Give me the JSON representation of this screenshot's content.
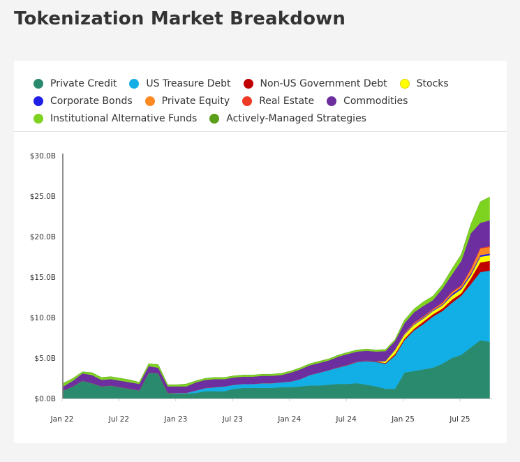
{
  "header": {
    "title": "Tokenization Market Breakdown"
  },
  "chart_data": {
    "type": "area",
    "stacked": true,
    "title": "",
    "xlabel": "",
    "ylabel": "",
    "ylim": [
      0,
      30
    ],
    "y_unit": "$B",
    "y_ticks": [
      "$0.0B",
      "$5.0B",
      "$10.0B",
      "$15.0B",
      "$20.0B",
      "$25.0B",
      "$30.0B"
    ],
    "x_ticks": [
      "Jan 22",
      "Jul 22",
      "Jan 23",
      "Jul 23",
      "Jan 24",
      "Jul 24",
      "Jan 25",
      "Jul 25"
    ],
    "legend_position": "top",
    "grid": false,
    "x": [
      "2022-01",
      "2022-02",
      "2022-03",
      "2022-04",
      "2022-05",
      "2022-06",
      "2022-07",
      "2022-08",
      "2022-09",
      "2022-10",
      "2022-11",
      "2022-12",
      "2023-01",
      "2023-02",
      "2023-03",
      "2023-04",
      "2023-05",
      "2023-06",
      "2023-07",
      "2023-08",
      "2023-09",
      "2023-10",
      "2023-11",
      "2023-12",
      "2024-01",
      "2024-02",
      "2024-03",
      "2024-04",
      "2024-05",
      "2024-06",
      "2024-07",
      "2024-08",
      "2024-09",
      "2024-10",
      "2024-11",
      "2024-12",
      "2025-01",
      "2025-02",
      "2025-03",
      "2025-04",
      "2025-05",
      "2025-06",
      "2025-07",
      "2025-08",
      "2025-09",
      "2025-10"
    ],
    "series": [
      {
        "name": "Private Credit",
        "color": "#2a8a6e",
        "values": [
          1.0,
          1.5,
          2.2,
          1.9,
          1.5,
          1.6,
          1.4,
          1.2,
          1.0,
          3.2,
          3.1,
          0.7,
          0.6,
          0.6,
          0.7,
          0.9,
          0.9,
          0.9,
          1.2,
          1.3,
          1.3,
          1.3,
          1.3,
          1.4,
          1.4,
          1.5,
          1.6,
          1.6,
          1.7,
          1.8,
          1.8,
          1.9,
          1.7,
          1.5,
          1.2,
          1.2,
          3.2,
          3.4,
          3.6,
          3.8,
          4.3,
          5.0,
          5.4,
          6.3,
          7.2,
          7.0
        ]
      },
      {
        "name": "US Treasure Debt",
        "color": "#12aee6",
        "values": [
          0,
          0,
          0,
          0,
          0,
          0,
          0,
          0,
          0,
          0,
          0,
          0,
          0.1,
          0.1,
          0.3,
          0.4,
          0.5,
          0.6,
          0.5,
          0.5,
          0.5,
          0.6,
          0.6,
          0.6,
          0.7,
          0.9,
          1.3,
          1.6,
          1.8,
          2.0,
          2.3,
          2.6,
          2.9,
          3.0,
          3.1,
          4.1,
          4.0,
          5.0,
          5.6,
          6.3,
          6.5,
          6.8,
          7.3,
          7.8,
          8.4,
          8.8
        ]
      },
      {
        "name": "Non-US Government Debt",
        "color": "#c00000",
        "values": [
          0,
          0,
          0,
          0,
          0,
          0,
          0,
          0,
          0,
          0,
          0,
          0,
          0,
          0,
          0,
          0,
          0,
          0,
          0,
          0,
          0,
          0,
          0,
          0,
          0,
          0,
          0,
          0,
          0,
          0.03,
          0.05,
          0.05,
          0.05,
          0.05,
          0.1,
          0.2,
          0.2,
          0.2,
          0.3,
          0.3,
          0.3,
          0.4,
          0.3,
          0.7,
          1.2,
          1.2
        ]
      },
      {
        "name": "Stocks",
        "color": "#ffff00",
        "values": [
          0,
          0,
          0,
          0,
          0,
          0,
          0,
          0,
          0,
          0,
          0,
          0,
          0,
          0,
          0,
          0,
          0,
          0,
          0,
          0,
          0,
          0,
          0,
          0,
          0,
          0,
          0,
          0,
          0,
          0,
          0,
          0,
          0,
          0,
          0.2,
          0.5,
          0.5,
          0.5,
          0.4,
          0.4,
          0.4,
          0.5,
          0.5,
          0.4,
          0.7,
          0.7
        ]
      },
      {
        "name": "Corporate Bonds",
        "color": "#1f1fe6",
        "values": [
          0,
          0,
          0,
          0,
          0,
          0,
          0,
          0,
          0,
          0,
          0,
          0,
          0,
          0,
          0,
          0,
          0,
          0,
          0,
          0,
          0,
          0,
          0,
          0,
          0,
          0,
          0,
          0,
          0,
          0.03,
          0.05,
          0.05,
          0.05,
          0.05,
          0.05,
          0.1,
          0.1,
          0.1,
          0.1,
          0.1,
          0.1,
          0.2,
          0.2,
          0.2,
          0.2,
          0.2
        ]
      },
      {
        "name": "Private Equity",
        "color": "#ff8a24",
        "values": [
          0,
          0,
          0,
          0,
          0,
          0,
          0,
          0,
          0,
          0,
          0,
          0,
          0,
          0,
          0,
          0,
          0,
          0,
          0,
          0,
          0,
          0,
          0,
          0,
          0,
          0,
          0,
          0,
          0,
          0,
          0,
          0,
          0,
          0,
          0,
          0,
          0.05,
          0.1,
          0.1,
          0.1,
          0.2,
          0.2,
          0.2,
          0.5,
          0.8,
          0.8
        ]
      },
      {
        "name": "Real Estate",
        "color": "#ee3a24",
        "values": [
          0,
          0,
          0,
          0,
          0,
          0,
          0,
          0,
          0,
          0,
          0,
          0,
          0,
          0,
          0,
          0,
          0,
          0,
          0,
          0,
          0,
          0,
          0,
          0,
          0,
          0,
          0,
          0,
          0,
          0,
          0,
          0,
          0,
          0,
          0,
          0,
          0.05,
          0.05,
          0.05,
          0.05,
          0.05,
          0.1,
          0.1,
          0.1,
          0.1,
          0.1
        ]
      },
      {
        "name": "Commodities",
        "color": "#6d2fa0",
        "values": [
          0.5,
          0.7,
          0.9,
          1.0,
          0.8,
          0.8,
          0.8,
          0.8,
          0.8,
          0.8,
          0.7,
          0.8,
          0.8,
          0.8,
          1.0,
          1.0,
          1.0,
          0.9,
          0.9,
          0.9,
          0.9,
          0.9,
          0.9,
          0.9,
          1.1,
          1.2,
          1.2,
          1.2,
          1.2,
          1.3,
          1.3,
          1.2,
          1.2,
          1.2,
          1.2,
          1.0,
          1.2,
          1.3,
          1.3,
          1.1,
          1.7,
          2.1,
          3.0,
          4.4,
          3.1,
          3.2
        ]
      },
      {
        "name": "Institutional Alternative Funds",
        "color": "#7ed321",
        "values": [
          0.4,
          0.3,
          0.2,
          0.3,
          0.3,
          0.3,
          0.3,
          0.3,
          0.2,
          0.3,
          0.4,
          0.2,
          0.2,
          0.3,
          0.2,
          0.2,
          0.2,
          0.2,
          0.2,
          0.2,
          0.2,
          0.2,
          0.2,
          0.2,
          0.2,
          0.2,
          0.2,
          0.2,
          0.2,
          0.2,
          0.2,
          0.2,
          0.2,
          0.2,
          0.2,
          0.2,
          0.4,
          0.4,
          0.5,
          0.5,
          0.5,
          0.7,
          0.8,
          1.1,
          2.6,
          2.9
        ]
      },
      {
        "name": "Actively-Managed Strategies",
        "color": "#5a9e1a",
        "values": [
          0,
          0,
          0,
          0,
          0,
          0,
          0,
          0,
          0,
          0,
          0,
          0,
          0,
          0,
          0,
          0,
          0,
          0,
          0,
          0,
          0,
          0,
          0,
          0,
          0,
          0,
          0,
          0,
          0,
          0,
          0,
          0,
          0,
          0,
          0,
          0,
          0,
          0,
          0,
          0,
          0,
          0,
          0,
          0,
          0,
          0
        ]
      }
    ]
  }
}
